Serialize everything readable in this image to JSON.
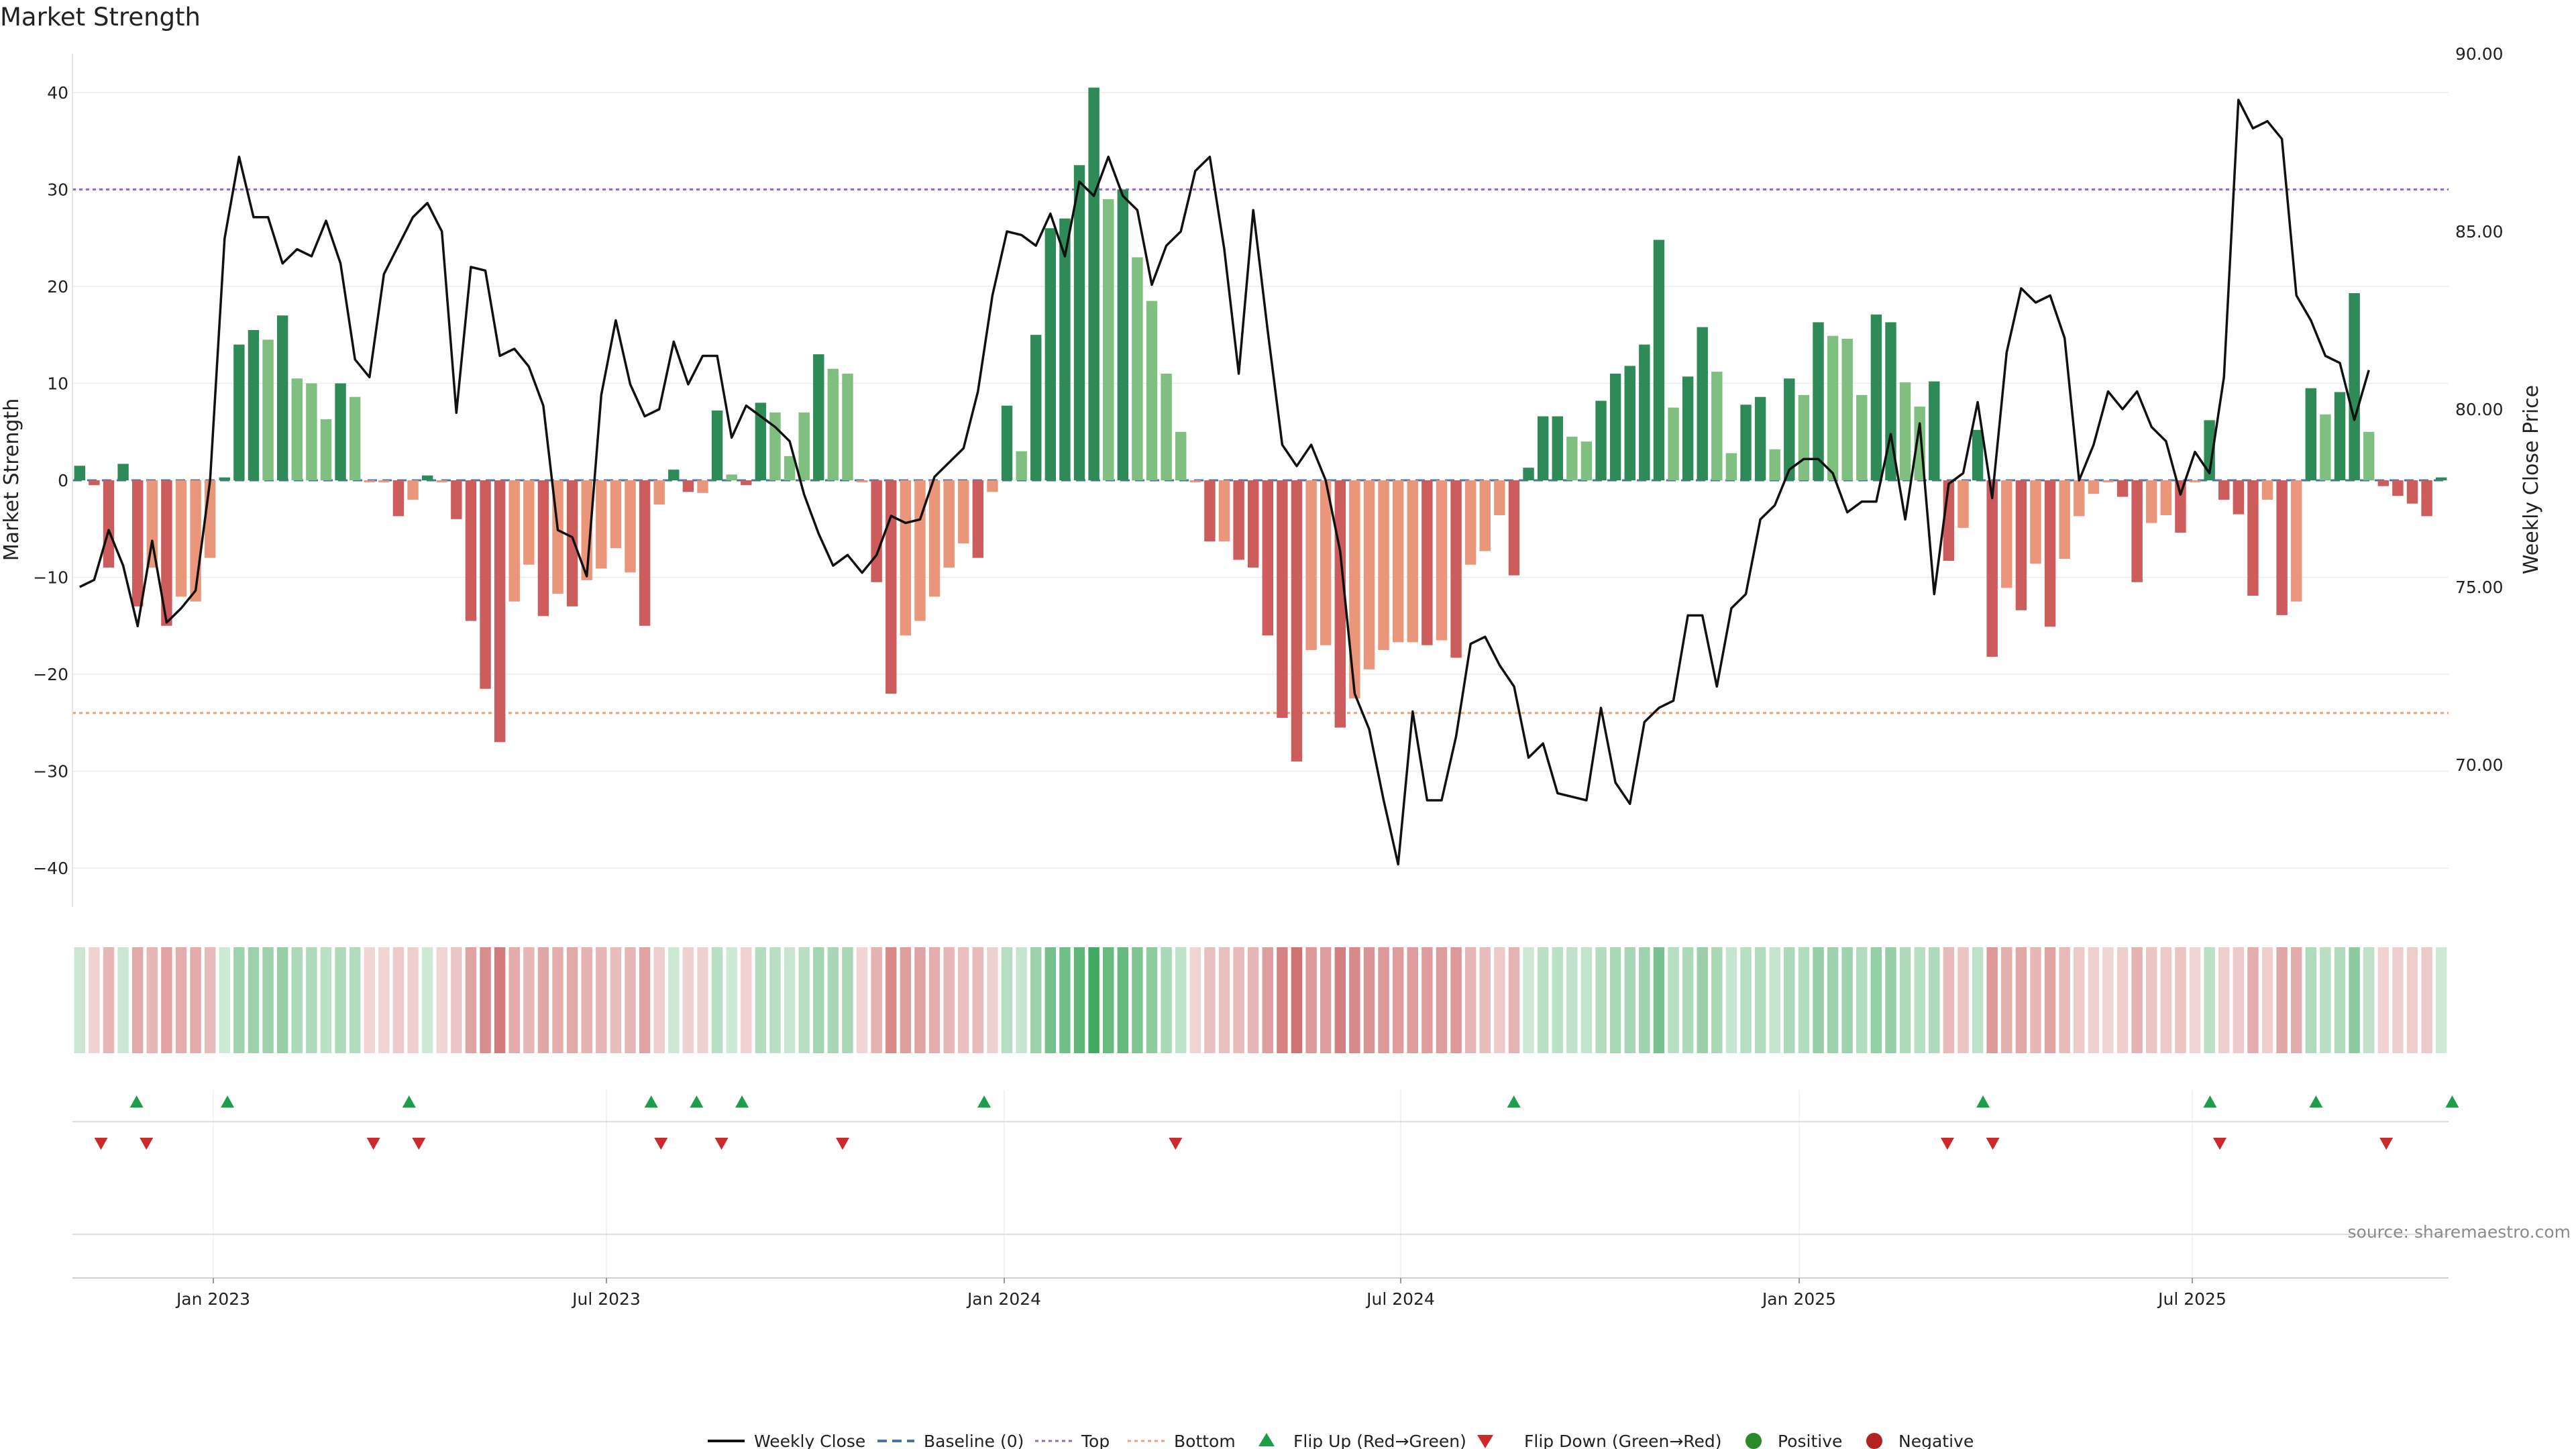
{
  "chart_data": {
    "type": "bar",
    "title": "Market Strength",
    "ylabel": "Market Strength",
    "y2label": "Weekly Close Price",
    "ylim": [
      -44,
      44
    ],
    "y2lim": [
      66.0,
      90.0
    ],
    "yticks": [
      40,
      30,
      20,
      10,
      0,
      -10,
      -20,
      -30,
      -40
    ],
    "y2ticks": [
      "90.00",
      "85.00",
      "80.00",
      "75.00",
      "70.00"
    ],
    "y2tick_values": [
      90,
      85,
      80,
      75,
      70
    ],
    "x_tick_labels": [
      "Jan 2023",
      "Jul 2023",
      "Jan 2024",
      "Jul 2024",
      "Jan 2025",
      "Jul 2025"
    ],
    "top_line": 30,
    "bottom_line": -24,
    "colors": {
      "strong_pos": "#2e8b57",
      "weak_pos": "#7fbf7f",
      "strong_neg": "#cd5c5c",
      "weak_neg": "#e9967a",
      "price": "#111111",
      "baseline": "#4a74a8",
      "top": "#9467bd",
      "bottom": "#f0a070",
      "flip_up": "#1e9e4a",
      "flip_down": "#cc2a2a",
      "positive_dot": "#2a8a2a",
      "negative_dot": "#b22222"
    },
    "series": [
      {
        "name": "Market Strength",
        "values": [
          1.5,
          -0.5,
          -9,
          1.7,
          -13,
          -9,
          -15,
          -12,
          -12.5,
          -8,
          0.3,
          14,
          15.5,
          14.5,
          17,
          10.5,
          10,
          6.3,
          10,
          8.6,
          -0.2,
          -0.2,
          -3.7,
          -2,
          0.5,
          -0.2,
          -4,
          -14.5,
          -21.5,
          -27,
          -12.5,
          -8.7,
          -14,
          -11.7,
          -13,
          -10.3,
          -9.1,
          -7,
          -9.5,
          -15,
          -2.5,
          1.1,
          -1.2,
          -1.3,
          7.2,
          0.6,
          -0.5,
          8,
          7,
          2.5,
          7,
          13,
          11.5,
          11,
          -0.2,
          -10.5,
          -22,
          -16,
          -14.5,
          -12,
          -9,
          -6.5,
          -8,
          -1.2,
          7.7,
          3,
          15,
          26,
          27,
          32.5,
          40.5,
          29,
          30,
          23,
          18.5,
          11,
          5,
          -0.2,
          -6.3,
          -6.3,
          -8.2,
          -9,
          -16,
          -24.5,
          -29,
          -17.5,
          -17,
          -25.5,
          -22.5,
          -19.5,
          -17.5,
          -16.7,
          -16.7,
          -17,
          -16.5,
          -18.3,
          -8.7,
          -7.3,
          -3.6,
          -9.8,
          1.3,
          6.6,
          6.6,
          4.5,
          4,
          8.2,
          11,
          11.8,
          14,
          24.8,
          7.5,
          10.7,
          15.8,
          11.2,
          2.8,
          7.8,
          8.6,
          3.2,
          10.5,
          8.8,
          16.3,
          14.9,
          14.6,
          8.8,
          17.1,
          16.3,
          10.1,
          7.6,
          10.2,
          -8.3,
          -4.9,
          5.2,
          -18.2,
          -11.1,
          -13.4,
          -8.6,
          -15.1,
          -8.1,
          -3.7,
          -1.4,
          -0.2,
          -1.7,
          -10.5,
          -4.4,
          -3.6,
          -5.4,
          -0.2,
          6.2,
          -2,
          -3.5,
          -11.9,
          -2,
          -13.9,
          -12.5,
          9.5,
          6.8,
          9.1,
          19.3,
          5,
          -0.6,
          -1.6,
          -2.4,
          -3.7,
          0.3
        ],
        "colors": [
          "strong_pos",
          "strong_neg",
          "strong_neg",
          "strong_pos",
          "strong_neg",
          "weak_neg",
          "strong_neg",
          "weak_neg",
          "weak_neg",
          "weak_neg",
          "strong_pos",
          "strong_pos",
          "strong_pos",
          "weak_pos",
          "strong_pos",
          "weak_pos",
          "weak_pos",
          "weak_pos",
          "strong_pos",
          "weak_pos",
          "weak_neg",
          "weak_neg",
          "strong_neg",
          "weak_neg",
          "strong_pos",
          "weak_neg",
          "strong_neg",
          "strong_neg",
          "strong_neg",
          "strong_neg",
          "weak_neg",
          "weak_neg",
          "strong_neg",
          "weak_neg",
          "strong_neg",
          "weak_neg",
          "weak_neg",
          "weak_neg",
          "weak_neg",
          "strong_neg",
          "weak_neg",
          "strong_pos",
          "strong_neg",
          "weak_neg",
          "strong_pos",
          "weak_pos",
          "strong_neg",
          "strong_pos",
          "weak_pos",
          "weak_pos",
          "weak_pos",
          "strong_pos",
          "weak_pos",
          "weak_pos",
          "weak_neg",
          "strong_neg",
          "strong_neg",
          "weak_neg",
          "weak_neg",
          "weak_neg",
          "weak_neg",
          "weak_neg",
          "strong_neg",
          "weak_neg",
          "strong_pos",
          "weak_pos",
          "strong_pos",
          "strong_pos",
          "strong_pos",
          "strong_pos",
          "strong_pos",
          "weak_pos",
          "strong_pos",
          "weak_pos",
          "weak_pos",
          "weak_pos",
          "weak_pos",
          "weak_neg",
          "strong_neg",
          "weak_neg",
          "strong_neg",
          "strong_neg",
          "strong_neg",
          "strong_neg",
          "strong_neg",
          "weak_neg",
          "weak_neg",
          "strong_neg",
          "weak_neg",
          "weak_neg",
          "weak_neg",
          "weak_neg",
          "weak_neg",
          "strong_neg",
          "weak_neg",
          "strong_neg",
          "weak_neg",
          "weak_neg",
          "weak_neg",
          "strong_neg",
          "strong_pos",
          "strong_pos",
          "strong_pos",
          "weak_pos",
          "weak_pos",
          "strong_pos",
          "strong_pos",
          "strong_pos",
          "strong_pos",
          "strong_pos",
          "weak_pos",
          "strong_pos",
          "strong_pos",
          "weak_pos",
          "weak_pos",
          "strong_pos",
          "strong_pos",
          "weak_pos",
          "strong_pos",
          "weak_pos",
          "strong_pos",
          "weak_pos",
          "weak_pos",
          "weak_pos",
          "strong_pos",
          "strong_pos",
          "weak_pos",
          "weak_pos",
          "strong_pos",
          "strong_neg",
          "weak_neg",
          "strong_pos",
          "strong_neg",
          "weak_neg",
          "strong_neg",
          "weak_neg",
          "strong_neg",
          "weak_neg",
          "weak_neg",
          "weak_neg",
          "weak_neg",
          "strong_neg",
          "strong_neg",
          "weak_neg",
          "weak_neg",
          "strong_neg",
          "weak_neg",
          "strong_pos",
          "strong_neg",
          "strong_neg",
          "strong_neg",
          "weak_neg",
          "strong_neg",
          "weak_neg",
          "strong_pos",
          "weak_pos",
          "strong_pos",
          "strong_pos",
          "weak_pos",
          "strong_neg",
          "strong_neg",
          "strong_neg",
          "strong_neg",
          "strong_pos"
        ]
      },
      {
        "name": "Weekly Close",
        "axis": "right",
        "values": [
          75.0,
          75.2,
          76.6,
          75.6,
          73.9,
          76.3,
          74.0,
          74.4,
          74.9,
          78.0,
          84.8,
          87.1,
          85.4,
          85.4,
          84.1,
          84.5,
          84.3,
          85.3,
          84.1,
          81.4,
          80.9,
          83.8,
          84.6,
          85.4,
          85.8,
          85.0,
          79.9,
          84.0,
          83.9,
          81.5,
          81.7,
          81.2,
          80.1,
          76.6,
          76.4,
          75.3,
          80.4,
          82.5,
          80.7,
          79.8,
          80.0,
          81.9,
          80.7,
          81.5,
          81.5,
          79.2,
          80.1,
          79.8,
          79.5,
          79.1,
          77.6,
          76.5,
          75.6,
          75.9,
          75.4,
          75.9,
          77.0,
          76.8,
          76.9,
          78.1,
          78.5,
          78.9,
          80.5,
          83.2,
          85.0,
          84.9,
          84.6,
          85.5,
          84.3,
          86.4,
          86.0,
          87.1,
          86.0,
          85.6,
          83.5,
          84.6,
          85.0,
          86.7,
          87.1,
          84.5,
          81.0,
          85.6,
          82.2,
          79.0,
          78.4,
          79.0,
          78.0,
          76.0,
          72.0,
          71.0,
          69.0,
          67.2,
          71.5,
          69.0,
          69.0,
          70.8,
          73.4,
          73.6,
          72.8,
          72.2,
          70.2,
          70.6,
          69.2,
          69.1,
          69.0,
          71.6,
          69.5,
          68.9,
          71.2,
          71.6,
          71.8,
          74.2,
          74.2,
          72.2,
          74.4,
          74.8,
          76.9,
          77.3,
          78.3,
          78.6,
          78.6,
          78.2,
          77.1,
          77.4,
          77.4,
          79.3,
          76.9,
          79.6,
          74.8,
          77.9,
          78.2,
          80.2,
          77.5,
          81.6,
          83.4,
          83.0,
          83.2,
          82.0,
          78.0,
          79.0,
          80.5,
          80.0,
          80.5,
          79.5,
          79.1,
          77.6,
          78.8,
          78.2,
          80.9,
          88.7,
          87.9,
          88.1,
          87.6,
          83.2,
          82.5,
          81.5,
          81.3,
          79.7,
          81.1
        ]
      }
    ],
    "flip_up_indices": [
      3,
      9,
      21,
      37,
      40,
      43,
      59,
      94,
      125,
      140,
      147,
      156
    ],
    "flip_down_indices": [
      1,
      4,
      19,
      22,
      38,
      42,
      50,
      72,
      123,
      126,
      141,
      152
    ],
    "legend_position": "bottom-center",
    "grid": true
  },
  "legend": {
    "weekly_close": "Weekly Close",
    "baseline": "Baseline (0)",
    "top": "Top",
    "bottom": "Bottom",
    "flip_up": "Flip Up (Red→Green)",
    "flip_down": "Flip Down (Green→Red)",
    "positive": "Positive",
    "negative": "Negative"
  },
  "source_text": "source: sharemaestro.com"
}
